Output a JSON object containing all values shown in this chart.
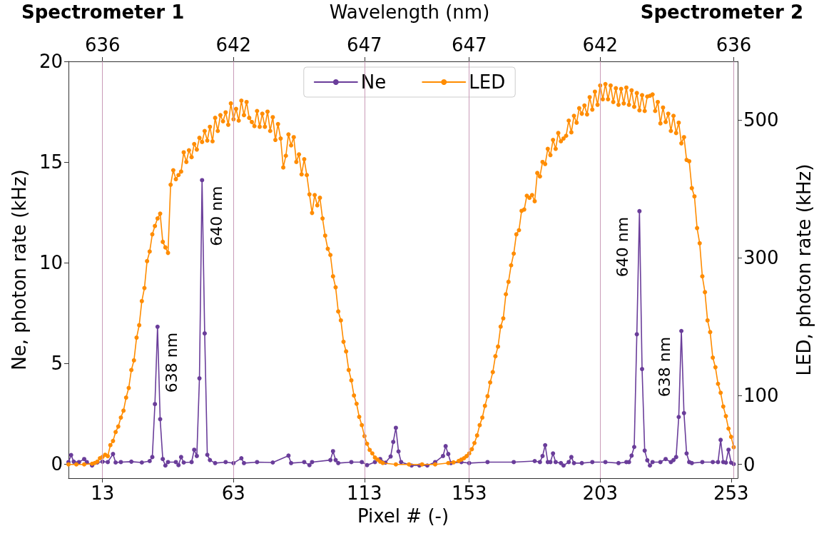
{
  "chart_data": {
    "type": "line",
    "xlabel": "Pixel # (-)",
    "ylabel": "Ne, photon rate (kHz)",
    "y2label": "LED, photon rate (kHz)",
    "x2label": "Wavelength (nm)",
    "annotations": [
      "Spectrometer 1",
      "Spectrometer 2",
      {
        "text": "638 nm",
        "x": 34,
        "y": 6.82
      },
      {
        "text": "640 nm",
        "x": 51,
        "y": 14.1
      },
      {
        "text": "640 nm",
        "x": 218,
        "y": 12.56
      },
      {
        "text": "638 nm",
        "x": 234,
        "y": 6.61
      },
      {
        "text": "636",
        "x": 13
      },
      {
        "text": "642",
        "x": 63
      },
      {
        "text": "647",
        "x": 113
      },
      {
        "text": "647",
        "x": 153
      },
      {
        "text": "642",
        "x": 203
      },
      {
        "text": "636",
        "x": 254
      }
    ],
    "xlim": [
      0,
      255.5
    ],
    "xticks": [
      13,
      63,
      113,
      153,
      203,
      253
    ],
    "ylim": [
      -0.7,
      20
    ],
    "yticks": [
      0,
      5,
      10,
      15,
      20
    ],
    "y2lim": [
      -20,
      585
    ],
    "y2ticks": [
      0,
      100,
      300,
      500
    ],
    "ref_lines": [
      {
        "axis": "x",
        "value": 13,
        "color": "#c99bb8"
      },
      {
        "axis": "x",
        "value": 63,
        "color": "#c99bb8"
      },
      {
        "axis": "x",
        "value": 113,
        "color": "#c99bb8"
      },
      {
        "axis": "x",
        "value": 153,
        "color": "#c99bb8"
      },
      {
        "axis": "x",
        "value": 203,
        "color": "#c99bb8"
      },
      {
        "axis": "x",
        "value": 254,
        "color": "#c99bb8"
      }
    ],
    "grid": false,
    "legend": "top",
    "marker": "circle",
    "line_style": "solid",
    "series": [
      {
        "name": "Ne",
        "color": "#6a3d9a",
        "x": [
          0,
          1,
          2,
          4,
          6,
          7,
          9,
          11,
          13,
          15,
          17,
          18,
          20,
          24,
          28,
          31,
          32,
          33,
          34,
          35,
          36,
          37,
          38,
          41,
          42,
          43,
          44,
          47,
          48,
          49,
          50,
          51,
          52,
          53,
          54,
          56,
          60,
          63,
          66,
          67,
          72,
          78,
          84,
          85,
          90,
          92,
          93,
          100,
          101,
          102,
          103,
          108,
          112,
          114,
          117,
          119,
          121,
          123,
          124,
          125,
          126,
          127,
          131,
          134,
          137,
          140,
          143,
          144,
          145,
          146,
          150,
          153,
          160,
          170,
          178,
          180,
          181,
          182,
          183,
          184,
          185,
          186,
          188,
          189,
          191,
          192,
          193,
          196,
          200,
          205,
          210,
          213,
          214,
          215,
          216,
          217,
          218,
          219,
          220,
          221,
          222,
          223,
          226,
          228,
          230,
          231,
          232,
          233,
          234,
          235,
          236,
          237,
          238,
          242,
          246,
          248,
          249,
          250,
          251,
          252,
          253,
          254
        ],
        "values": [
          0.1,
          0.45,
          0.12,
          0.1,
          0.25,
          0.1,
          -0.07,
          0.08,
          0.12,
          0.1,
          0.5,
          0.08,
          0.1,
          0.12,
          0.08,
          0.15,
          0.35,
          2.98,
          6.82,
          2.23,
          0.25,
          -0.07,
          0.1,
          0.1,
          -0.05,
          0.35,
          0.08,
          0.1,
          0.71,
          0.4,
          4.26,
          14.1,
          6.49,
          0.46,
          0.2,
          0.05,
          0.1,
          0.05,
          0.29,
          0.05,
          0.1,
          0.08,
          0.42,
          0.05,
          0.1,
          -0.05,
          0.1,
          0.2,
          0.64,
          0.2,
          0.05,
          0.1,
          0.1,
          -0.05,
          0.1,
          0.25,
          0.07,
          0.38,
          1.1,
          1.8,
          0.63,
          0.1,
          -0.07,
          -0.07,
          -0.07,
          0.1,
          0.4,
          0.89,
          0.5,
          0.05,
          0.1,
          0.05,
          0.1,
          0.1,
          0.15,
          0.1,
          0.4,
          0.94,
          0.1,
          0.1,
          0.53,
          0.1,
          0.05,
          -0.07,
          0.1,
          0.35,
          0.05,
          0.05,
          0.1,
          0.1,
          0.05,
          0.1,
          0.1,
          0.42,
          0.85,
          6.45,
          12.56,
          4.72,
          0.67,
          0.19,
          -0.07,
          0.1,
          0.1,
          0.25,
          0.1,
          0.2,
          0.35,
          2.34,
          6.61,
          2.53,
          0.53,
          0.1,
          0.05,
          0.1,
          0.1,
          0.1,
          1.2,
          0.1,
          0.07,
          0.71,
          0.07,
          0
        ]
      },
      {
        "name": "LED",
        "color": "#ff8c00",
        "axis": "y2",
        "x": [
          0,
          3,
          6,
          9,
          10,
          11,
          12,
          13,
          14,
          15,
          16,
          17,
          18,
          19,
          20,
          21,
          22,
          23,
          24,
          25,
          26,
          27,
          28,
          29,
          30,
          31,
          32,
          33,
          34,
          35,
          36,
          37,
          38,
          39,
          40,
          41,
          42,
          43,
          44,
          45,
          46,
          47,
          48,
          49,
          50,
          51,
          52,
          53,
          54,
          55,
          56,
          57,
          58,
          59,
          60,
          61,
          62,
          63,
          64,
          65,
          66,
          67,
          68,
          69,
          70,
          71,
          72,
          73,
          74,
          75,
          76,
          77,
          78,
          79,
          80,
          81,
          82,
          83,
          84,
          85,
          86,
          87,
          88,
          89,
          90,
          91,
          92,
          93,
          94,
          95,
          96,
          97,
          98,
          99,
          100,
          101,
          102,
          103,
          104,
          105,
          106,
          107,
          108,
          109,
          110,
          111,
          112,
          113,
          114,
          115,
          116,
          117,
          118,
          119,
          120,
          125,
          130,
          135,
          140,
          145,
          147,
          149,
          150,
          151,
          152,
          153,
          154,
          155,
          156,
          157,
          158,
          159,
          160,
          161,
          162,
          163,
          164,
          165,
          166,
          167,
          168,
          169,
          170,
          171,
          172,
          173,
          174,
          175,
          176,
          177,
          178,
          179,
          180,
          181,
          182,
          183,
          184,
          185,
          186,
          187,
          188,
          189,
          190,
          191,
          192,
          193,
          194,
          195,
          196,
          197,
          198,
          199,
          200,
          201,
          202,
          203,
          204,
          205,
          206,
          207,
          208,
          209,
          210,
          211,
          212,
          213,
          214,
          215,
          216,
          217,
          218,
          219,
          220,
          221,
          222,
          223,
          224,
          225,
          226,
          227,
          228,
          229,
          230,
          231,
          232,
          233,
          234,
          235,
          236,
          237,
          238,
          239,
          240,
          241,
          242,
          243,
          244,
          245,
          246,
          247,
          248,
          249,
          250,
          251,
          252,
          253,
          254
        ],
        "values": [
          0,
          0,
          0,
          1,
          2,
          4,
          9,
          11,
          14,
          12,
          28,
          34,
          47,
          55,
          68,
          78,
          97,
          111,
          137,
          151,
          184,
          202,
          237,
          256,
          295,
          309,
          334,
          346,
          357,
          364,
          323,
          315,
          307,
          406,
          427,
          414,
          420,
          425,
          453,
          439,
          456,
          446,
          465,
          457,
          474,
          468,
          484,
          470,
          490,
          469,
          503,
          484,
          507,
          498,
          511,
          493,
          524,
          501,
          516,
          499,
          528,
          507,
          526,
          503,
          497,
          491,
          513,
          490,
          509,
          490,
          512,
          484,
          504,
          471,
          494,
          473,
          431,
          448,
          479,
          463,
          475,
          439,
          450,
          421,
          443,
          420,
          392,
          365,
          391,
          376,
          387,
          357,
          332,
          313,
          304,
          273,
          257,
          222,
          209,
          178,
          164,
          137,
          122,
          100,
          88,
          69,
          57,
          41,
          30,
          21,
          16,
          10,
          7,
          4,
          2,
          0,
          0,
          0,
          0,
          2,
          3,
          5,
          7,
          9,
          12,
          16,
          22,
          31,
          42,
          57,
          68,
          85,
          99,
          119,
          134,
          157,
          171,
          200,
          212,
          247,
          265,
          289,
          306,
          334,
          340,
          368,
          370,
          390,
          387,
          391,
          382,
          423,
          418,
          439,
          436,
          458,
          449,
          471,
          458,
          481,
          469,
          473,
          477,
          499,
          482,
          506,
          496,
          517,
          509,
          521,
          508,
          533,
          515,
          541,
          522,
          550,
          530,
          552,
          530,
          550,
          526,
          546,
          522,
          545,
          524,
          547,
          522,
          543,
          519,
          539,
          514,
          536,
          513,
          534,
          535,
          537,
          513,
          526,
          495,
          518,
          497,
          509,
          484,
          506,
          481,
          496,
          466,
          475,
          442,
          440,
          401,
          389,
          343,
          321,
          273,
          250,
          209,
          192,
          155,
          141,
          117,
          104,
          84,
          70,
          52,
          40,
          25
        ]
      }
    ]
  }
}
